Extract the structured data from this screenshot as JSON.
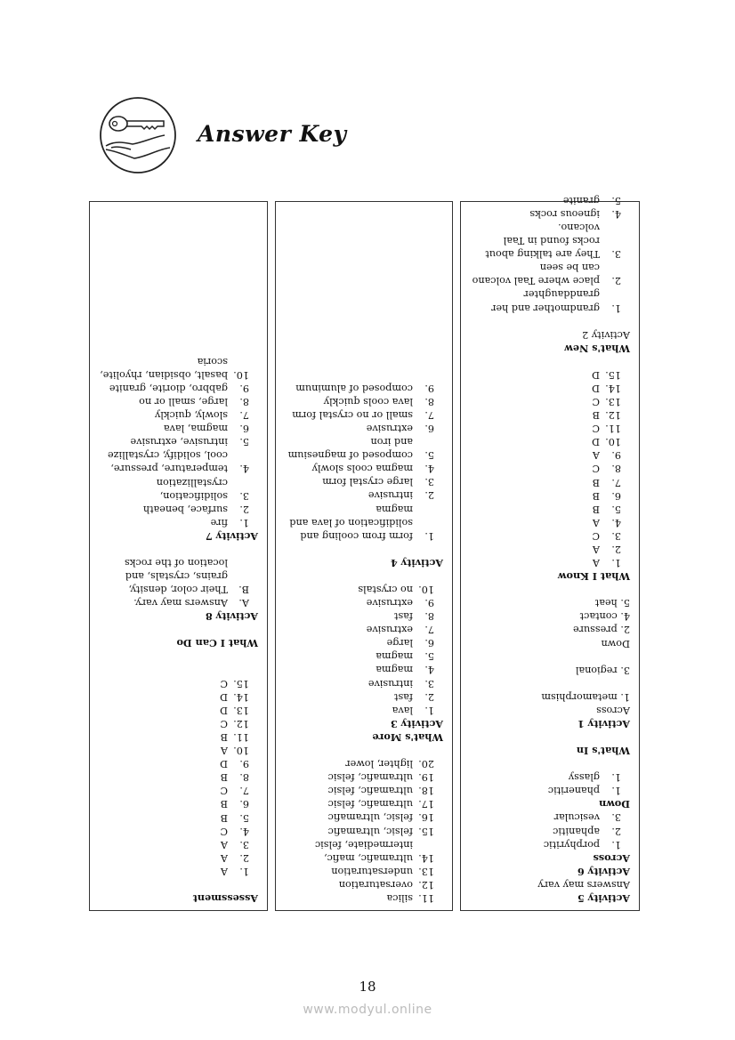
{
  "header": {
    "title": "Answer Key",
    "logo_icon": "key-in-hand-icon"
  },
  "columns": [
    [
      {
        "t": "h",
        "text": "Activity 5"
      },
      {
        "t": "p",
        "text": "Answers may vary"
      },
      {
        "t": "h",
        "text": "Activity 6"
      },
      {
        "t": "h",
        "text": "Across"
      },
      {
        "t": "i",
        "num": "1.",
        "text": "porphyritic"
      },
      {
        "t": "i",
        "num": "2.",
        "text": "aphanitic"
      },
      {
        "t": "i",
        "num": "3.",
        "text": "vesicular"
      },
      {
        "t": "h",
        "text": "Down"
      },
      {
        "t": "i",
        "num": "1.",
        "text": "phaneritic"
      },
      {
        "t": "i",
        "num": "1.",
        "text": "glassy"
      },
      {
        "t": "gap"
      },
      {
        "t": "h",
        "text": "What's In"
      },
      {
        "t": "gap"
      },
      {
        "t": "h",
        "text": "Activity 1"
      },
      {
        "t": "p",
        "text": "Across"
      },
      {
        "t": "p",
        "text": "1. metamorphism"
      },
      {
        "t": "gap"
      },
      {
        "t": "p",
        "text": "3. regional"
      },
      {
        "t": "gap"
      },
      {
        "t": "p",
        "text": "Down"
      },
      {
        "t": "p",
        "text": "2. pressure"
      },
      {
        "t": "p",
        "text": "4. contact"
      },
      {
        "t": "p",
        "text": "5. heat"
      },
      {
        "t": "gap"
      },
      {
        "t": "h",
        "text": "What I Know"
      },
      {
        "t": "i",
        "num": "1.",
        "text": "A"
      },
      {
        "t": "i",
        "num": "2.",
        "text": "A"
      },
      {
        "t": "i",
        "num": "3.",
        "text": "C"
      },
      {
        "t": "i",
        "num": "4.",
        "text": "A"
      },
      {
        "t": "i",
        "num": "5.",
        "text": "B"
      },
      {
        "t": "i",
        "num": "6.",
        "text": "B"
      },
      {
        "t": "i",
        "num": "7.",
        "text": "B"
      },
      {
        "t": "i",
        "num": "8.",
        "text": "C"
      },
      {
        "t": "i",
        "num": "9.",
        "text": "A"
      },
      {
        "t": "i",
        "num": "10.",
        "text": "D"
      },
      {
        "t": "i",
        "num": "11.",
        "text": "C"
      },
      {
        "t": "i",
        "num": "12.",
        "text": "B"
      },
      {
        "t": "i",
        "num": "13.",
        "text": "C"
      },
      {
        "t": "i",
        "num": "14.",
        "text": "D"
      },
      {
        "t": "i",
        "num": "15.",
        "text": "D"
      },
      {
        "t": "gap"
      },
      {
        "t": "h",
        "text": "What's New"
      },
      {
        "t": "p",
        "text": "Activity 2"
      },
      {
        "t": "gap"
      },
      {
        "t": "i",
        "num": "1.",
        "text": "grandmother and her granddaughter"
      },
      {
        "t": "i",
        "num": "2.",
        "text": "place where Taal volcano can be seen"
      },
      {
        "t": "i",
        "num": "3.",
        "text": "They are talking about rocks found in Taal volcano."
      },
      {
        "t": "i",
        "num": "4.",
        "text": "igneous rocks"
      },
      {
        "t": "i",
        "num": "5.",
        "text": "granite"
      }
    ],
    [
      {
        "t": "i",
        "num": "11.",
        "text": "silica"
      },
      {
        "t": "i",
        "num": "12.",
        "text": "oversaturation"
      },
      {
        "t": "i",
        "num": "13.",
        "text": "undersaturation"
      },
      {
        "t": "i",
        "num": "14.",
        "text": "ultramafic, mafic, intermediate, felsic"
      },
      {
        "t": "i",
        "num": "15.",
        "text": "felsic, ultramafic"
      },
      {
        "t": "i",
        "num": "16.",
        "text": "felsic, ultramafic"
      },
      {
        "t": "i",
        "num": "17.",
        "text": "ultramafic, felsic"
      },
      {
        "t": "i",
        "num": "18.",
        "text": "ultramafic, felsic"
      },
      {
        "t": "i",
        "num": "19.",
        "text": "ultramafic, felsic"
      },
      {
        "t": "i",
        "num": "20.",
        "text": "lighter, lower"
      },
      {
        "t": "gap"
      },
      {
        "t": "h",
        "text": "What's More"
      },
      {
        "t": "h",
        "text": "Activity 3"
      },
      {
        "t": "i",
        "num": "1.",
        "text": "lava"
      },
      {
        "t": "i",
        "num": "2.",
        "text": "fast"
      },
      {
        "t": "i",
        "num": "3.",
        "text": "intrusive"
      },
      {
        "t": "i",
        "num": "4.",
        "text": "magma"
      },
      {
        "t": "i",
        "num": "5.",
        "text": "magma"
      },
      {
        "t": "i",
        "num": "6.",
        "text": "large"
      },
      {
        "t": "i",
        "num": "7.",
        "text": "extrusive"
      },
      {
        "t": "i",
        "num": "8.",
        "text": "fast"
      },
      {
        "t": "i",
        "num": "9.",
        "text": "extrusive"
      },
      {
        "t": "i",
        "num": "10.",
        "text": "no crystals"
      },
      {
        "t": "gap"
      },
      {
        "t": "h",
        "text": "Activity 4"
      },
      {
        "t": "gap"
      },
      {
        "t": "i",
        "num": "1.",
        "text": "form from cooling and solidification of lava and magma"
      },
      {
        "t": "i",
        "num": "2.",
        "text": "intrusive"
      },
      {
        "t": "i",
        "num": "3.",
        "text": "large crystal form"
      },
      {
        "t": "i",
        "num": "4.",
        "text": "magma cools slowly"
      },
      {
        "t": "i",
        "num": "5.",
        "text": "composed of magnesium and iron"
      },
      {
        "t": "i",
        "num": "6.",
        "text": "extrusive"
      },
      {
        "t": "i",
        "num": "7.",
        "text": "small or no crystal form"
      },
      {
        "t": "i",
        "num": "8.",
        "text": "lava cools quickly"
      },
      {
        "t": "i",
        "num": "9.",
        "text": "composed of aluminum"
      }
    ],
    [
      {
        "t": "h",
        "text": "Assessment"
      },
      {
        "t": "gap"
      },
      {
        "t": "i",
        "num": "1.",
        "text": "A"
      },
      {
        "t": "i",
        "num": "2.",
        "text": "A"
      },
      {
        "t": "i",
        "num": "3.",
        "text": "A"
      },
      {
        "t": "i",
        "num": "4.",
        "text": "C"
      },
      {
        "t": "i",
        "num": "5.",
        "text": "B"
      },
      {
        "t": "i",
        "num": "6.",
        "text": "B"
      },
      {
        "t": "i",
        "num": "7.",
        "text": "C"
      },
      {
        "t": "i",
        "num": "8.",
        "text": "B"
      },
      {
        "t": "i",
        "num": "9.",
        "text": "D"
      },
      {
        "t": "i",
        "num": "10.",
        "text": "A"
      },
      {
        "t": "i",
        "num": "11.",
        "text": "B"
      },
      {
        "t": "i",
        "num": "12.",
        "text": "C"
      },
      {
        "t": "i",
        "num": "13.",
        "text": "D"
      },
      {
        "t": "i",
        "num": "14.",
        "text": "D"
      },
      {
        "t": "i",
        "num": "15.",
        "text": "C"
      },
      {
        "t": "gap"
      },
      {
        "t": "gap"
      },
      {
        "t": "h",
        "text": "What I Can Do"
      },
      {
        "t": "gap"
      },
      {
        "t": "h",
        "text": "Activity 8"
      },
      {
        "t": "i",
        "num": "A.",
        "text": "Answers may vary."
      },
      {
        "t": "i",
        "num": "B.",
        "text": "Their color, density, grains, crystals, and location of the rocks"
      },
      {
        "t": "gap"
      },
      {
        "t": "h",
        "text": "Activity 7"
      },
      {
        "t": "i",
        "num": "1.",
        "text": "fire"
      },
      {
        "t": "i",
        "num": "2.",
        "text": "surface, beneath"
      },
      {
        "t": "i",
        "num": "3.",
        "text": "solidification, crystallization"
      },
      {
        "t": "i",
        "num": "4.",
        "text": "temperature, pressure, cool, solidify, crystallize"
      },
      {
        "t": "i",
        "num": "5.",
        "text": "intrusive, extrusive"
      },
      {
        "t": "i",
        "num": "6.",
        "text": "magma, lava"
      },
      {
        "t": "i",
        "num": "7.",
        "text": "slowly, quickly"
      },
      {
        "t": "i",
        "num": "8.",
        "text": "large, small or no"
      },
      {
        "t": "i",
        "num": "9.",
        "text": "gabbro, diorite, granite"
      },
      {
        "t": "i",
        "num": "10.",
        "text": "basalt, obsidian, rhyolite, scoria"
      }
    ]
  ],
  "footer": {
    "page_number": "18",
    "watermark": "www.modyul.online"
  }
}
